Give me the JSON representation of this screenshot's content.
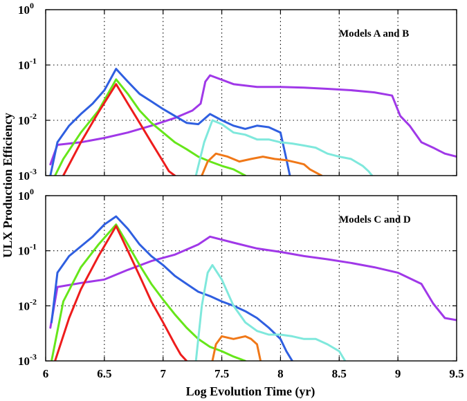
{
  "chart_data": {
    "type": "line",
    "xlabel": "Log Evolution Time (yr)",
    "ylabel": "ULX Production Efficiency",
    "xlim": [
      6,
      9.5
    ],
    "x_ticks": [
      "6",
      "6.5",
      "7",
      "7.5",
      "8",
      "8.5",
      "9",
      "9.5"
    ],
    "y_scale": "log",
    "colors": {
      "blue": "#2f5fe0",
      "green": "#66e61a",
      "red": "#ee1c1c",
      "purple": "#a038e8",
      "cyan": "#7fe8dc",
      "orange": "#f07818"
    },
    "panels": [
      {
        "title": "Models A and B",
        "ylim": [
          0.001,
          1
        ],
        "y_ticks": [
          {
            "base": "10",
            "exp": "0"
          },
          {
            "base": "10",
            "exp": "-1"
          },
          {
            "base": "10",
            "exp": "-2"
          },
          {
            "base": "10",
            "exp": "-3"
          }
        ],
        "series": [
          {
            "color": "purple",
            "x": [
              6.04,
              6.1,
              6.3,
              6.5,
              6.7,
              6.9,
              7.1,
              7.25,
              7.32,
              7.36,
              7.4,
              7.6,
              7.8,
              8.0,
              8.2,
              8.4,
              8.6,
              8.8,
              8.95,
              9.02,
              9.1,
              9.2,
              9.3,
              9.4,
              9.5
            ],
            "y": [
              0.0016,
              0.0036,
              0.004,
              0.0048,
              0.006,
              0.008,
              0.011,
              0.015,
              0.02,
              0.05,
              0.065,
              0.045,
              0.04,
              0.04,
              0.039,
              0.037,
              0.035,
              0.032,
              0.028,
              0.012,
              0.008,
              0.004,
              0.0032,
              0.0025,
              0.0022
            ]
          },
          {
            "color": "blue",
            "x": [
              6.04,
              6.1,
              6.2,
              6.3,
              6.4,
              6.5,
              6.6,
              6.7,
              6.8,
              6.9,
              7.0,
              7.1,
              7.2,
              7.3,
              7.4,
              7.5,
              7.6,
              7.7,
              7.8,
              7.9,
              8.0,
              8.05,
              8.08
            ],
            "y": [
              0.001,
              0.004,
              0.008,
              0.013,
              0.02,
              0.035,
              0.085,
              0.05,
              0.03,
              0.022,
              0.016,
              0.012,
              0.009,
              0.0085,
              0.013,
              0.01,
              0.008,
              0.007,
              0.008,
              0.0075,
              0.006,
              0.002,
              0.001
            ]
          },
          {
            "color": "green",
            "x": [
              6.08,
              6.15,
              6.3,
              6.45,
              6.6,
              6.7,
              6.8,
              6.9,
              7.0,
              7.1,
              7.2,
              7.3,
              7.4,
              7.5,
              7.6,
              7.7
            ],
            "y": [
              0.001,
              0.002,
              0.006,
              0.015,
              0.055,
              0.03,
              0.015,
              0.009,
              0.006,
              0.004,
              0.003,
              0.0022,
              0.0018,
              0.0015,
              0.0013,
              0.001
            ]
          },
          {
            "color": "red",
            "x": [
              6.15,
              6.3,
              6.45,
              6.6,
              6.7,
              6.8,
              6.9,
              7.0,
              7.05,
              7.1
            ],
            "y": [
              0.001,
              0.004,
              0.014,
              0.045,
              0.02,
              0.009,
              0.004,
              0.0018,
              0.0012,
              0.001
            ]
          },
          {
            "color": "cyan",
            "x": [
              7.28,
              7.35,
              7.42,
              7.5,
              7.6,
              7.7,
              7.8,
              7.9,
              8.0,
              8.1,
              8.2,
              8.3,
              8.4,
              8.5,
              8.6,
              8.7,
              8.75,
              8.78
            ],
            "y": [
              0.001,
              0.004,
              0.01,
              0.0085,
              0.006,
              0.0055,
              0.0045,
              0.0045,
              0.004,
              0.0038,
              0.0035,
              0.0032,
              0.0025,
              0.0022,
              0.002,
              0.0015,
              0.0012,
              0.001
            ]
          },
          {
            "color": "orange",
            "x": [
              7.33,
              7.38,
              7.45,
              7.55,
              7.65,
              7.75,
              7.85,
              7.95,
              8.05,
              8.15,
              8.2,
              8.25,
              8.35
            ],
            "y": [
              0.001,
              0.0018,
              0.0025,
              0.0022,
              0.0018,
              0.002,
              0.0022,
              0.002,
              0.0019,
              0.0017,
              0.0016,
              0.0013,
              0.001
            ]
          }
        ]
      },
      {
        "title": "Models C and D",
        "ylim": [
          0.001,
          1
        ],
        "y_ticks": [
          {
            "base": "10",
            "exp": "0"
          },
          {
            "base": "10",
            "exp": "-1"
          },
          {
            "base": "10",
            "exp": "-2"
          },
          {
            "base": "10",
            "exp": "-3"
          }
        ],
        "series": [
          {
            "color": "purple",
            "x": [
              6.04,
              6.1,
              6.3,
              6.5,
              6.7,
              6.9,
              7.1,
              7.3,
              7.4,
              7.6,
              7.8,
              8.0,
              8.2,
              8.4,
              8.6,
              8.8,
              9.0,
              9.2,
              9.3,
              9.4,
              9.5
            ],
            "y": [
              0.004,
              0.022,
              0.026,
              0.03,
              0.045,
              0.065,
              0.085,
              0.13,
              0.18,
              0.14,
              0.11,
              0.095,
              0.08,
              0.07,
              0.06,
              0.05,
              0.04,
              0.025,
              0.011,
              0.006,
              0.0055
            ]
          },
          {
            "color": "blue",
            "x": [
              6.05,
              6.1,
              6.2,
              6.3,
              6.4,
              6.5,
              6.6,
              6.7,
              6.8,
              6.9,
              7.0,
              7.1,
              7.2,
              7.3,
              7.4,
              7.5,
              7.6,
              7.7,
              7.8,
              7.9,
              8.0,
              8.05,
              8.1
            ],
            "y": [
              0.005,
              0.04,
              0.08,
              0.12,
              0.18,
              0.3,
              0.42,
              0.25,
              0.13,
              0.08,
              0.055,
              0.035,
              0.025,
              0.018,
              0.015,
              0.012,
              0.01,
              0.008,
              0.006,
              0.004,
              0.0025,
              0.0015,
              0.001
            ]
          },
          {
            "color": "green",
            "x": [
              6.05,
              6.15,
              6.3,
              6.45,
              6.6,
              6.7,
              6.8,
              6.9,
              7.0,
              7.1,
              7.2,
              7.3,
              7.4,
              7.5,
              7.6,
              7.7
            ],
            "y": [
              0.001,
              0.012,
              0.05,
              0.13,
              0.3,
              0.13,
              0.055,
              0.025,
              0.013,
              0.007,
              0.004,
              0.0025,
              0.0018,
              0.0015,
              0.0012,
              0.001
            ]
          },
          {
            "color": "red",
            "x": [
              6.08,
              6.2,
              6.3,
              6.45,
              6.6,
              6.7,
              6.8,
              6.9,
              7.0,
              7.1,
              7.15,
              7.2
            ],
            "y": [
              0.001,
              0.006,
              0.02,
              0.08,
              0.28,
              0.1,
              0.035,
              0.012,
              0.005,
              0.002,
              0.0013,
              0.001
            ]
          },
          {
            "color": "cyan",
            "x": [
              7.28,
              7.33,
              7.38,
              7.42,
              7.5,
              7.6,
              7.7,
              7.8,
              7.9,
              8.0,
              8.1,
              8.2,
              8.3,
              8.4,
              8.5,
              8.55
            ],
            "y": [
              0.001,
              0.01,
              0.04,
              0.055,
              0.03,
              0.01,
              0.005,
              0.0035,
              0.003,
              0.003,
              0.0028,
              0.0025,
              0.0025,
              0.002,
              0.0015,
              0.001
            ]
          },
          {
            "color": "orange",
            "x": [
              7.42,
              7.45,
              7.5,
              7.6,
              7.7,
              7.75,
              7.8,
              7.83
            ],
            "y": [
              0.001,
              0.002,
              0.0028,
              0.0025,
              0.0028,
              0.0025,
              0.002,
              0.001
            ]
          }
        ]
      }
    ]
  }
}
